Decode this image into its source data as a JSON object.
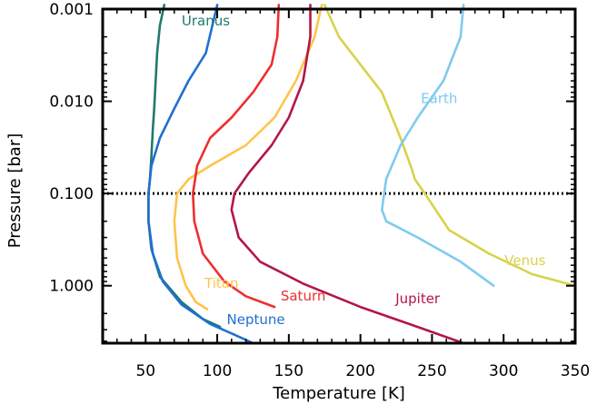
{
  "chart_data": {
    "type": "line",
    "xlabel": "Temperature [K]",
    "ylabel": "Pressure [bar]",
    "xlim": [
      20,
      350
    ],
    "ylim": [
      4.2,
      0.001
    ],
    "y_scale": "log",
    "x_ticks": [
      "50",
      "100",
      "150",
      "200",
      "250",
      "300",
      "350"
    ],
    "y_ticks": [
      "0.001",
      "0.010",
      "0.100",
      "1.000"
    ],
    "reference_line": {
      "y": 0.1,
      "style": "dotted",
      "color": "#000000"
    },
    "series": [
      {
        "name": "Uranus",
        "color": "#1f7a6e",
        "points": [
          [
            63,
            0.0009
          ],
          [
            60,
            0.0015
          ],
          [
            58,
            0.003
          ],
          [
            57,
            0.006
          ],
          [
            56,
            0.012
          ],
          [
            55,
            0.02
          ],
          [
            54,
            0.04
          ],
          [
            53,
            0.07
          ],
          [
            52,
            0.1
          ],
          [
            52,
            0.2
          ],
          [
            54,
            0.4
          ],
          [
            60,
            0.8
          ],
          [
            75,
            1.5
          ],
          [
            90,
            2.3
          ],
          [
            102,
            2.8
          ]
        ]
      },
      {
        "name": "Neptune",
        "color": "#1f6fd1",
        "points": [
          [
            100,
            0.0009
          ],
          [
            92,
            0.003
          ],
          [
            80,
            0.006
          ],
          [
            70,
            0.012
          ],
          [
            60,
            0.025
          ],
          [
            54,
            0.05
          ],
          [
            52,
            0.1
          ],
          [
            52,
            0.2
          ],
          [
            55,
            0.45
          ],
          [
            62,
            0.9
          ],
          [
            75,
            1.6
          ],
          [
            95,
            2.6
          ],
          [
            112,
            3.4
          ],
          [
            125,
            4.2
          ]
        ]
      },
      {
        "name": "Titan",
        "color": "#ffc44a",
        "points": [
          [
            173,
            0.0009
          ],
          [
            168,
            0.002
          ],
          [
            155,
            0.006
          ],
          [
            140,
            0.015
          ],
          [
            120,
            0.03
          ],
          [
            95,
            0.05
          ],
          [
            80,
            0.07
          ],
          [
            72,
            0.1
          ],
          [
            70,
            0.2
          ],
          [
            72,
            0.5
          ],
          [
            78,
            1.0
          ],
          [
            85,
            1.5
          ],
          [
            93,
            1.8
          ]
        ]
      },
      {
        "name": "Saturn",
        "color": "#ee2e2e",
        "points": [
          [
            143,
            0.0009
          ],
          [
            142,
            0.002
          ],
          [
            138,
            0.004
          ],
          [
            125,
            0.008
          ],
          [
            110,
            0.015
          ],
          [
            95,
            0.025
          ],
          [
            86,
            0.05
          ],
          [
            83,
            0.1
          ],
          [
            84,
            0.2
          ],
          [
            90,
            0.45
          ],
          [
            105,
            0.9
          ],
          [
            120,
            1.3
          ],
          [
            140,
            1.7
          ]
        ]
      },
      {
        "name": "Jupiter",
        "color": "#b3164a",
        "points": [
          [
            165,
            0.0009
          ],
          [
            165,
            0.002
          ],
          [
            160,
            0.006
          ],
          [
            150,
            0.015
          ],
          [
            138,
            0.03
          ],
          [
            122,
            0.06
          ],
          [
            112,
            0.1
          ],
          [
            110,
            0.15
          ],
          [
            115,
            0.3
          ],
          [
            130,
            0.55
          ],
          [
            160,
            0.95
          ],
          [
            200,
            1.7
          ],
          [
            240,
            2.8
          ],
          [
            272,
            4.2
          ]
        ]
      },
      {
        "name": "Venus",
        "color": "#d8d24a",
        "points": [
          [
            175,
            0.0009
          ],
          [
            185,
            0.002
          ],
          [
            200,
            0.004
          ],
          [
            215,
            0.008
          ],
          [
            228,
            0.025
          ],
          [
            236,
            0.055
          ],
          [
            238,
            0.07
          ],
          [
            245,
            0.1
          ],
          [
            262,
            0.25
          ],
          [
            290,
            0.45
          ],
          [
            320,
            0.75
          ],
          [
            350,
            1.0
          ]
        ]
      },
      {
        "name": "Earth",
        "color": "#7fcaf0",
        "points": [
          [
            272,
            0.0009
          ],
          [
            270,
            0.002
          ],
          [
            258,
            0.006
          ],
          [
            240,
            0.015
          ],
          [
            228,
            0.03
          ],
          [
            218,
            0.07
          ],
          [
            215,
            0.15
          ],
          [
            218,
            0.2
          ],
          [
            240,
            0.3
          ],
          [
            270,
            0.55
          ],
          [
            293,
            1.0
          ]
        ]
      }
    ]
  }
}
